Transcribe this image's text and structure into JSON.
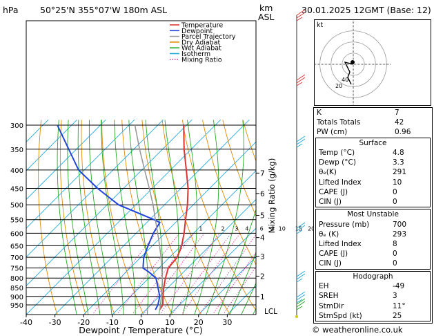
{
  "header": {
    "location": "50°25'N 355°07'W 180m ASL",
    "datetime": "30.01.2025 12GMT (Base: 12)",
    "hpa_label": "hPa",
    "km_label": "km",
    "asl_label": "ASL"
  },
  "chart_data": {
    "type": "skew-t",
    "xlabel": "Dewpoint / Temperature (°C)",
    "ylabel": "Mixing Ratio (g/kg)",
    "x_ticks": [
      -40,
      -30,
      -20,
      -10,
      0,
      10,
      20,
      30
    ],
    "p_ticks": [
      300,
      350,
      400,
      450,
      500,
      550,
      600,
      650,
      700,
      750,
      800,
      850,
      900,
      950
    ],
    "xlim": [
      -40,
      40
    ],
    "ylim": [
      1000,
      300
    ],
    "km_ticks": [
      {
        "label": "7",
        "p": 408
      },
      {
        "label": "6",
        "p": 465
      },
      {
        "label": "5",
        "p": 535
      },
      {
        "label": "4",
        "p": 617
      },
      {
        "label": "3",
        "p": 697
      },
      {
        "label": "2",
        "p": 790
      },
      {
        "label": "1",
        "p": 900
      }
    ],
    "lcl_label": "LCL",
    "lcl_p": 974,
    "mixing_ratio_labels": [
      {
        "label": "1",
        "t": -7.5
      },
      {
        "label": "2",
        "t": 0.2
      },
      {
        "label": "3",
        "t": 5.0
      },
      {
        "label": "4",
        "t": 8.6
      },
      {
        "label": "6",
        "t": 13.7
      },
      {
        "label": "8",
        "t": 17.6
      },
      {
        "label": "10",
        "t": 20.8
      },
      {
        "label": "15",
        "t": 26.6
      },
      {
        "label": "20",
        "t": 31.0
      },
      {
        "label": "25",
        "t": 34.0
      }
    ],
    "series": [
      {
        "name": "Temperature",
        "color": "#dd3333",
        "points": [
          [
            980,
            4.8
          ],
          [
            950,
            4.2
          ],
          [
            900,
            1.3
          ],
          [
            850,
            -1.5
          ],
          [
            800,
            -4.2
          ],
          [
            750,
            -6.7
          ],
          [
            700,
            -7.3
          ],
          [
            650,
            -9.8
          ],
          [
            600,
            -13.3
          ],
          [
            550,
            -17.5
          ],
          [
            500,
            -22.0
          ],
          [
            450,
            -27.5
          ],
          [
            400,
            -34.5
          ],
          [
            350,
            -42.5
          ],
          [
            300,
            -51.0
          ]
        ]
      },
      {
        "name": "Dewpoint",
        "color": "#2244dd",
        "points": [
          [
            980,
            3.3
          ],
          [
            950,
            2.5
          ],
          [
            900,
            0.2
          ],
          [
            850,
            -3.5
          ],
          [
            800,
            -7.5
          ],
          [
            770,
            -12.0
          ],
          [
            750,
            -15.5
          ],
          [
            700,
            -19.0
          ],
          [
            650,
            -21.5
          ],
          [
            600,
            -24.0
          ],
          [
            560,
            -25.5
          ],
          [
            550,
            -28.5
          ],
          [
            500,
            -46.0
          ],
          [
            450,
            -59.0
          ],
          [
            400,
            -72.0
          ],
          [
            300,
            -95.0
          ]
        ]
      },
      {
        "name": "Parcel Trajectory",
        "color": "#999999",
        "points": [
          [
            980,
            4.8
          ],
          [
            950,
            3.5
          ],
          [
            900,
            0.8
          ],
          [
            850,
            -2.0
          ],
          [
            800,
            -5.3
          ],
          [
            750,
            -9.0
          ],
          [
            700,
            -13.0
          ],
          [
            650,
            -17.5
          ],
          [
            600,
            -22.5
          ],
          [
            550,
            -28.0
          ],
          [
            500,
            -34.0
          ],
          [
            450,
            -41.0
          ],
          [
            400,
            -49.0
          ],
          [
            350,
            -58.0
          ],
          [
            300,
            -68.0
          ]
        ]
      }
    ],
    "legend": [
      {
        "label": "Temperature",
        "color": "#dd3333"
      },
      {
        "label": "Dewpoint",
        "color": "#2244dd"
      },
      {
        "label": "Parcel Trajectory",
        "color": "#999999"
      },
      {
        "label": "Dry Adiabat",
        "color": "#e08a00"
      },
      {
        "label": "Wet Adiabat",
        "color": "#22aa22"
      },
      {
        "label": "Isotherm",
        "color": "#22aadd"
      },
      {
        "label": "Mixing Ratio",
        "color": "#dd33aa"
      }
    ],
    "legend_placement": "top-left",
    "colors": {
      "isotherm": "#22aadd",
      "dry_adiabat": "#e08a00",
      "wet_adiabat": "#22aa22",
      "mixing_ratio": "#dd33aa"
    }
  },
  "hodograph": {
    "unit_label": "kt",
    "ring_labels": [
      "20",
      "40"
    ],
    "points": [
      [
        0,
        0
      ],
      [
        -0.6,
        0.15
      ],
      [
        -0.25,
        -0.55
      ],
      [
        -0.4,
        -0.95
      ],
      [
        -0.15,
        -1.45
      ]
    ]
  },
  "indices": {
    "rows": [
      {
        "label": "K",
        "value": "7"
      },
      {
        "label": "Totals Totals",
        "value": "42"
      },
      {
        "label": "PW (cm)",
        "value": "0.96"
      }
    ]
  },
  "surface": {
    "title": "Surface",
    "rows": [
      {
        "label": "Temp (°C)",
        "value": "4.8"
      },
      {
        "label": "Dewp (°C)",
        "value": "3.3"
      },
      {
        "label": "θₑ(K)",
        "value": "291"
      },
      {
        "label": "Lifted Index",
        "value": "10"
      },
      {
        "label": "CAPE (J)",
        "value": "0"
      },
      {
        "label": "CIN (J)",
        "value": "0"
      }
    ]
  },
  "most_unstable": {
    "title": "Most Unstable",
    "rows": [
      {
        "label": "Pressure (mb)",
        "value": "700"
      },
      {
        "label": "θₑ (K)",
        "value": "293"
      },
      {
        "label": "Lifted Index",
        "value": "8"
      },
      {
        "label": "CAPE (J)",
        "value": "0"
      },
      {
        "label": "CIN (J)",
        "value": "0"
      }
    ]
  },
  "hodograph_table": {
    "title": "Hodograph",
    "rows": [
      {
        "label": "EH",
        "value": "-49"
      },
      {
        "label": "SREH",
        "value": "3"
      },
      {
        "label": "StmDir",
        "value": "11°"
      },
      {
        "label": "StmSpd (kt)",
        "value": "25"
      }
    ]
  },
  "footer": {
    "copyright": "© weatheronline.co.uk"
  }
}
